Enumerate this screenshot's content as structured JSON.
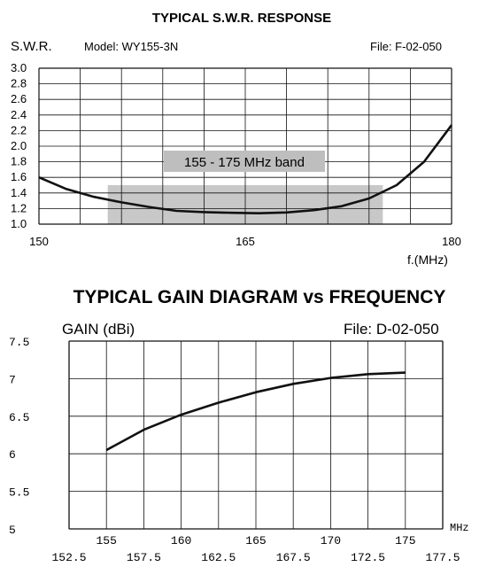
{
  "colors": {
    "ink": "#111111",
    "band": "#c8c8c8",
    "label_bg": "#bebebe"
  },
  "chart_data": [
    {
      "type": "line",
      "title": "TYPICAL S.W.R. RESPONSE",
      "ylabel": "S.W.R.",
      "model": "Model:  WY155-3N",
      "file": "File:  F-02-050",
      "xlabel": "f.(MHz)",
      "xlim": [
        150,
        180
      ],
      "ylim": [
        1.0,
        3.0
      ],
      "x_ticks": [
        "150",
        "165",
        "180"
      ],
      "y_ticks": [
        "3.0",
        "2.8",
        "2.6",
        "2.4",
        "2.2",
        "2.0",
        "1.8",
        "1.6",
        "1.4",
        "1.2",
        "1.0"
      ],
      "grid": true,
      "band": {
        "label": "155 - 175 MHz band",
        "x_range": [
          155,
          175
        ],
        "y_range": [
          1.0,
          1.5
        ]
      },
      "series": [
        {
          "x": [
            150,
            152,
            154,
            156,
            158,
            160,
            162,
            164,
            166,
            168,
            170,
            172,
            174,
            176,
            178,
            180
          ],
          "y": [
            1.6,
            1.45,
            1.35,
            1.28,
            1.22,
            1.17,
            1.155,
            1.145,
            1.14,
            1.15,
            1.18,
            1.23,
            1.33,
            1.5,
            1.8,
            2.27
          ]
        }
      ]
    },
    {
      "type": "line",
      "title": "TYPICAL GAIN DIAGRAM vs FREQUENCY",
      "ylabel": "GAIN (dBi)",
      "file": "File:  D-02-050",
      "xlabel": "MHz",
      "xlim": [
        152.5,
        177.5
      ],
      "ylim": [
        5,
        7.5
      ],
      "x_ticks_upper": [
        "155",
        "160",
        "165",
        "170",
        "175"
      ],
      "x_ticks_lower": [
        "152.5",
        "157.5",
        "162.5",
        "167.5",
        "172.5",
        "177.5"
      ],
      "y_ticks": [
        "7.5",
        "7",
        "6.5",
        "6",
        "5.5",
        "5"
      ],
      "grid": true,
      "series": [
        {
          "x": [
            155,
            157.5,
            160,
            162.5,
            165,
            167.5,
            170,
            172.5,
            175
          ],
          "y": [
            6.05,
            6.32,
            6.52,
            6.68,
            6.82,
            6.93,
            7.01,
            7.06,
            7.08
          ]
        }
      ]
    }
  ]
}
